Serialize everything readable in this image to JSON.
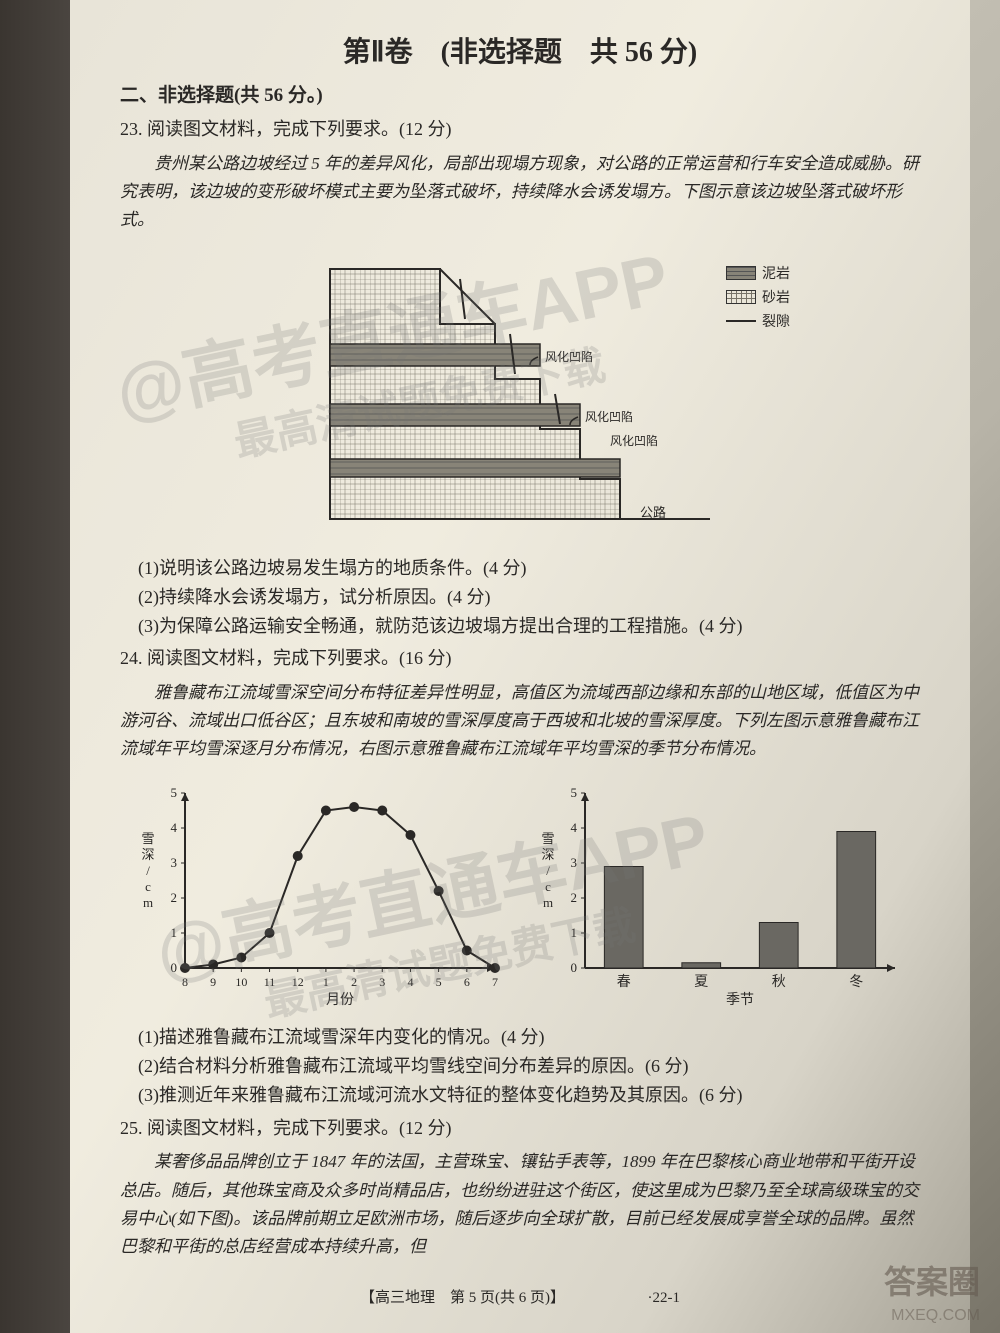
{
  "title": "第Ⅱ卷　(非选择题　共 56 分)",
  "section_head": "二、非选择题(共 56 分。)",
  "q23": {
    "head": "23. 阅读图文材料，完成下列要求。(12 分)",
    "passage": "贵州某公路边坡经过 5 年的差异风化，局部出现塌方现象，对公路的正常运营和行车安全造成威胁。研究表明，该边坡的变形破坏模式主要为坠落式破坏，持续降水会诱发塌方。下图示意该边坡坠落式破坏形式。",
    "legend": {
      "mud": "泥岩",
      "sand": "砂岩",
      "crack": "裂隙"
    },
    "labels": {
      "cavity": "风化凹陷",
      "road": "公路"
    },
    "diagram_colors": {
      "outline": "#2a2826",
      "mud_fill": "#888478",
      "sand_hatch": "#555148",
      "grid": "#777368"
    },
    "sub1": "(1)说明该公路边坡易发生塌方的地质条件。(4 分)",
    "sub2": "(2)持续降水会诱发塌方，试分析原因。(4 分)",
    "sub3": "(3)为保障公路运输安全畅通，就防范该边坡塌方提出合理的工程措施。(4 分)"
  },
  "q24": {
    "head": "24. 阅读图文材料，完成下列要求。(16 分)",
    "passage": "雅鲁藏布江流域雪深空间分布特征差异性明显，高值区为流域西部边缘和东部的山地区域，低值区为中游河谷、流域出口低谷区；且东坡和南坡的雪深厚度高于西坡和北坡的雪深厚度。下列左图示意雅鲁藏布江流域年平均雪深逐月分布情况，右图示意雅鲁藏布江流域年平均雪深的季节分布情况。",
    "line_chart": {
      "type": "line",
      "x_labels": [
        "8",
        "9",
        "10",
        "11",
        "12",
        "1",
        "2",
        "3",
        "4",
        "5",
        "6",
        "7"
      ],
      "x_axis_label": "月份",
      "y_label": "雪深/cm",
      "ylim": [
        0,
        5
      ],
      "ytick_step": 1,
      "values": [
        0,
        0.1,
        0.3,
        1.0,
        3.2,
        4.5,
        4.6,
        4.5,
        3.8,
        2.2,
        0.5,
        0
      ],
      "line_color": "#2a2826",
      "marker": "circle",
      "marker_size": 5,
      "background": "transparent",
      "axis_color": "#2a2826"
    },
    "bar_chart": {
      "type": "bar",
      "categories": [
        "春",
        "夏",
        "秋",
        "冬"
      ],
      "x_axis_label": "季节",
      "y_label": "雪深/cm",
      "ylim": [
        0,
        5
      ],
      "ytick_step": 1,
      "values": [
        2.9,
        0.15,
        1.3,
        3.9
      ],
      "bar_color": "#6a6862",
      "bar_width": 0.5,
      "background": "transparent",
      "axis_color": "#2a2826"
    },
    "sub1": "(1)描述雅鲁藏布江流域雪深年内变化的情况。(4 分)",
    "sub2": "(2)结合材料分析雅鲁藏布江流域平均雪线空间分布差异的原因。(6 分)",
    "sub3": "(3)推测近年来雅鲁藏布江流域河流水文特征的整体变化趋势及其原因。(6 分)"
  },
  "q25": {
    "head": "25. 阅读图文材料，完成下列要求。(12 分)",
    "passage": "某奢侈品品牌创立于 1847 年的法国，主营珠宝、镶钻手表等，1899 年在巴黎核心商业地带和平街开设总店。随后，其他珠宝商及众多时尚精品店，也纷纷进驻这个街区，使这里成为巴黎乃至全球高级珠宝的交易中心(如下图)。该品牌前期立足欧洲市场，随后逐步向全球扩散，目前已经发展成享誉全球的品牌。虽然巴黎和平街的总店经营成本持续升高，但"
  },
  "footer": {
    "left": "【高三地理　第 5 页(共 6 页)】",
    "right": "·22-1"
  },
  "watermarks": {
    "wm1": "@高考直通车APP",
    "wm2": "最高清试题免费下载",
    "badge": "答案圈",
    "url": "MXEQ.COM"
  }
}
